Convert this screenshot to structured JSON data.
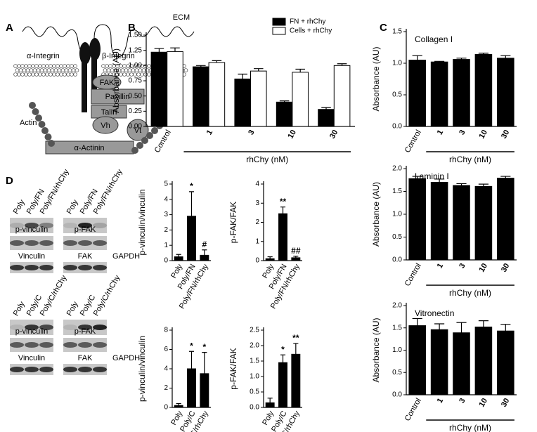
{
  "panel_labels": [
    "A",
    "B",
    "C",
    "D"
  ],
  "diagram": {
    "ecm": "ECM",
    "alpha_integrin": "α-Integrin",
    "beta_integrin": "β-Integrin",
    "fak": "FAK",
    "paxillin": "Paxillin",
    "talin": "Talin",
    "vt": "Vt",
    "vh": "Vh",
    "actin": "Actin",
    "alpha_actinin": "α-Actinin"
  },
  "blots": [
    {
      "lanes": [
        "Poly",
        "Poly/FN",
        "Poly/FN/rhChy"
      ],
      "left_rows": [
        "p-vinculin",
        "Vinculin"
      ],
      "right_rows": [
        "p-FAK",
        "FAK"
      ],
      "loading": "GAPDH"
    },
    {
      "lanes": [
        "Poly",
        "Poly/C",
        "Poly/C/rhChy"
      ],
      "left_rows": [
        "p-vinculin",
        "Vinculin"
      ],
      "right_rows": [
        "p-FAK",
        "FAK"
      ],
      "loading": "GAPDH"
    }
  ],
  "chart_data": [
    {
      "type": "bar",
      "ylabel": "Absorbance (AU)",
      "categories": [
        "Control",
        "1",
        "3",
        "10",
        "30"
      ],
      "group_label": "rhChy (nM)",
      "series": [
        {
          "name": "FN + rhChy",
          "color": "#000000",
          "values": [
            1.22,
            0.98,
            0.78,
            0.4,
            0.28
          ],
          "errors": [
            0.06,
            0.02,
            0.08,
            0.02,
            0.03
          ]
        },
        {
          "name": "Cells + rhChy",
          "color": "#ffffff",
          "values": [
            1.23,
            1.05,
            0.91,
            0.89,
            1.0
          ],
          "errors": [
            0.06,
            0.03,
            0.04,
            0.05,
            0.03
          ]
        }
      ],
      "ylim": [
        0,
        1.5
      ],
      "yticks": [
        {
          "value": 0,
          "label": "0.00"
        },
        0.25,
        {
          "value": 0.5,
          "label": "0.50"
        },
        0.75,
        {
          "value": 1,
          "label": "1.00"
        },
        1.25,
        {
          "value": 1.5,
          "label": "1.50"
        }
      ],
      "legend": "top-right"
    },
    {
      "type": "bar",
      "title": "Collagen I",
      "ylabel": "Absorbance (AU)",
      "categories": [
        "Control",
        "1",
        "3",
        "10",
        "30"
      ],
      "group_label": "rhChy (nM)",
      "values": [
        1.05,
        1.02,
        1.06,
        1.14,
        1.08
      ],
      "errors": [
        0.07,
        0.01,
        0.02,
        0.02,
        0.04
      ],
      "color": "#000000",
      "ylim": [
        0,
        1.5
      ],
      "yticks": [
        {
          "value": 0,
          "label": "0.0"
        },
        0.5,
        {
          "value": 1,
          "label": "1.0"
        },
        1.5
      ]
    },
    {
      "type": "bar",
      "title": "Laminin I",
      "ylabel": "Absorbance (AU)",
      "categories": [
        "Control",
        "1",
        "3",
        "10",
        "30"
      ],
      "group_label": "rhChy (nM)",
      "values": [
        1.78,
        1.7,
        1.63,
        1.61,
        1.79
      ],
      "errors": [
        0.05,
        0.07,
        0.04,
        0.05,
        0.04
      ],
      "color": "#000000",
      "ylim": [
        0,
        2
      ],
      "yticks": [
        {
          "value": 0,
          "label": "0.0"
        },
        0.5,
        {
          "value": 1,
          "label": "1.0"
        },
        1.5,
        {
          "value": 2,
          "label": "2.0"
        }
      ]
    },
    {
      "type": "bar",
      "title": "Vitronectin",
      "ylabel": "Absorbance (AU)",
      "categories": [
        "Control",
        "1",
        "3",
        "10",
        "30"
      ],
      "group_label": "rhChy (nM)",
      "values": [
        1.55,
        1.46,
        1.39,
        1.52,
        1.43
      ],
      "errors": [
        0.16,
        0.13,
        0.23,
        0.14,
        0.15
      ],
      "color": "#000000",
      "ylim": [
        0,
        2
      ],
      "yticks": [
        {
          "value": 0,
          "label": "0.0"
        },
        0.5,
        {
          "value": 1,
          "label": "1.0"
        },
        1.5,
        {
          "value": 2,
          "label": "2.0"
        }
      ]
    },
    {
      "type": "bar",
      "ylabel": "p-vinculin/vinculin",
      "categories": [
        "Poly",
        "Poly/FN",
        "Poly/FN/rhChy"
      ],
      "values": [
        0.25,
        2.9,
        0.35
      ],
      "errors": [
        0.15,
        1.6,
        0.35
      ],
      "annotations": [
        null,
        "*",
        "#"
      ],
      "color": "#000000",
      "ylim": [
        0,
        5
      ],
      "yticks": [
        0,
        1,
        2,
        3,
        4,
        5
      ]
    },
    {
      "type": "bar",
      "ylabel": "p-FAK/FAK",
      "categories": [
        "Poly",
        "Poly/FN",
        "Poly/FN/rhChy"
      ],
      "values": [
        0.1,
        2.45,
        0.15
      ],
      "errors": [
        0.1,
        0.35,
        0.08
      ],
      "annotations": [
        null,
        "**",
        "##"
      ],
      "color": "#000000",
      "ylim": [
        0,
        4
      ],
      "yticks": [
        0,
        1,
        2,
        3,
        4
      ]
    },
    {
      "type": "bar",
      "ylabel": "p-vinculin/vinculin",
      "categories": [
        "Poly",
        "Poly/C",
        "Poly/C/rhChy"
      ],
      "values": [
        0.2,
        4.0,
        3.5
      ],
      "errors": [
        0.2,
        1.8,
        2.2
      ],
      "annotations": [
        null,
        "*",
        "*"
      ],
      "color": "#000000",
      "ylim": [
        0,
        8
      ],
      "yticks": [
        0,
        2,
        4,
        6,
        8
      ]
    },
    {
      "type": "bar",
      "ylabel": "p-FAK/FAK",
      "categories": [
        "Poly",
        "Poly/C",
        "Poly/C/rhChy"
      ],
      "values": [
        0.15,
        1.45,
        1.72
      ],
      "errors": [
        0.15,
        0.25,
        0.35
      ],
      "annotations": [
        null,
        "*",
        "**"
      ],
      "color": "#000000",
      "ylim": [
        0,
        2.5
      ],
      "yticks": [
        {
          "value": 0,
          "label": "0.0"
        },
        0.5,
        {
          "value": 1,
          "label": "1.0"
        },
        1.5,
        {
          "value": 2,
          "label": "2.0"
        },
        2.5
      ]
    }
  ]
}
